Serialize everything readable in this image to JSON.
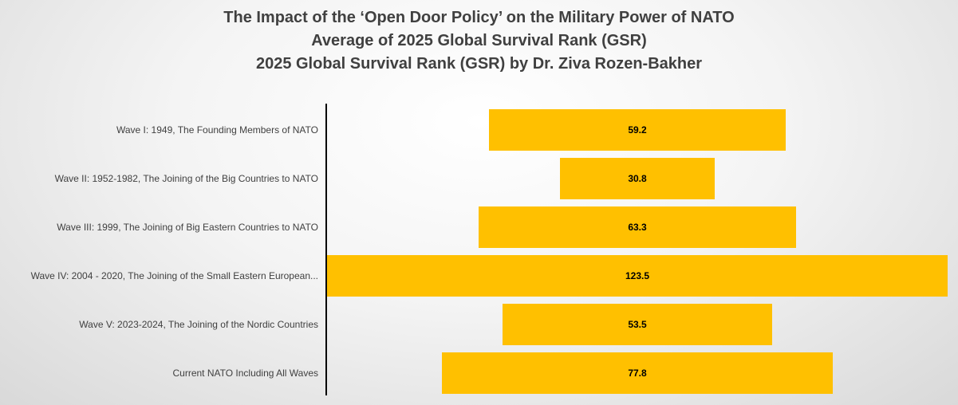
{
  "chart_data": {
    "type": "bar",
    "orientation": "horizontal-funnel",
    "title_lines": [
      "The Impact of the ‘Open Door Policy’ on the Military Power of NATO",
      "Average of 2025 Global Survival Rank (GSR)",
      "2025 Global Survival Rank (GSR) by Dr. Ziva Rozen-Bakher"
    ],
    "categories": [
      "Wave I: 1949, The Founding Members of NATO",
      "Wave II: 1952-1982, The Joining of the Big Countries to NATO",
      "Wave III: 1999, The Joining of Big Eastern Countries to NATO",
      "Wave IV: 2004 - 2020, The Joining of the Small Eastern European...",
      "Wave V: 2023-2024, The Joining of the Nordic Countries",
      "Current NATO Including All Waves"
    ],
    "values": [
      59.2,
      30.8,
      63.3,
      123.5,
      53.5,
      77.8
    ],
    "data_labels": [
      "59.2",
      "30.8",
      "63.3",
      "123.5",
      "53.5",
      "77.8"
    ],
    "bar_color": "#ffc000",
    "xlabel": "",
    "ylabel": "",
    "grid": false,
    "legend": "none"
  }
}
